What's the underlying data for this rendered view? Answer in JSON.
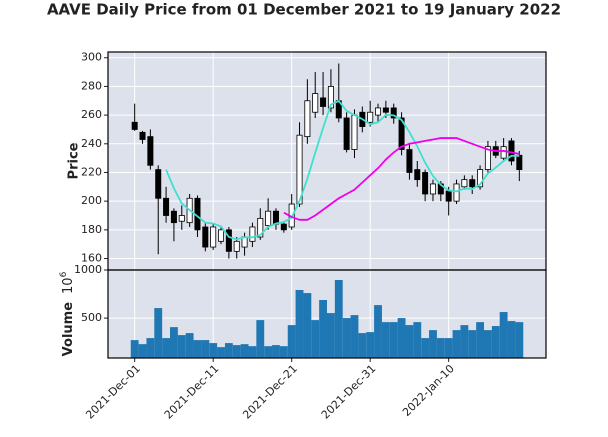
{
  "chart_data": {
    "type": "candlestick",
    "title": "AAVE Daily Price from 01 December 2021 to 19 January 2022",
    "ylabel": "Price",
    "x": [
      "2021-Dec-01",
      "2021-Dec-02",
      "2021-Dec-03",
      "2021-Dec-04",
      "2021-Dec-05",
      "2021-Dec-06",
      "2021-Dec-07",
      "2021-Dec-08",
      "2021-Dec-09",
      "2021-Dec-10",
      "2021-Dec-11",
      "2021-Dec-12",
      "2021-Dec-13",
      "2021-Dec-14",
      "2021-Dec-15",
      "2021-Dec-16",
      "2021-Dec-17",
      "2021-Dec-18",
      "2021-Dec-19",
      "2021-Dec-20",
      "2021-Dec-21",
      "2021-Dec-22",
      "2021-Dec-23",
      "2021-Dec-24",
      "2021-Dec-25",
      "2021-Dec-26",
      "2021-Dec-27",
      "2021-Dec-28",
      "2021-Dec-29",
      "2021-Dec-30",
      "2021-Dec-31",
      "2022-Jan-01",
      "2022-Jan-02",
      "2022-Jan-03",
      "2022-Jan-04",
      "2022-Jan-05",
      "2022-Jan-06",
      "2022-Jan-07",
      "2022-Jan-08",
      "2022-Jan-09",
      "2022-Jan-10",
      "2022-Jan-11",
      "2022-Jan-12",
      "2022-Jan-13",
      "2022-Jan-14",
      "2022-Jan-15",
      "2022-Jan-16",
      "2022-Jan-17",
      "2022-Jan-18",
      "2022-Jan-19"
    ],
    "open": [
      255,
      248,
      245,
      222,
      202,
      193,
      186,
      185,
      202,
      182,
      168,
      172,
      180,
      165,
      168,
      172,
      175,
      183,
      193,
      184,
      182,
      198,
      245,
      262,
      272,
      265,
      270,
      258,
      236,
      262,
      255,
      260,
      265,
      265,
      258,
      236,
      222,
      220,
      205,
      212,
      207,
      200,
      210,
      215,
      210,
      222,
      238,
      230,
      242,
      232
    ],
    "high": [
      268,
      249,
      250,
      225,
      210,
      195,
      197,
      205,
      204,
      185,
      184,
      182,
      182,
      175,
      178,
      185,
      195,
      202,
      195,
      186,
      205,
      255,
      285,
      290,
      290,
      292,
      296,
      262,
      264,
      266,
      270,
      268,
      270,
      268,
      262,
      240,
      228,
      222,
      215,
      214,
      210,
      215,
      218,
      218,
      225,
      242,
      242,
      244,
      244,
      235
    ],
    "low": [
      249,
      240,
      222,
      163,
      185,
      172,
      180,
      182,
      175,
      165,
      166,
      170,
      160,
      160,
      162,
      168,
      173,
      180,
      180,
      178,
      180,
      196,
      240,
      258,
      260,
      262,
      255,
      234,
      230,
      248,
      252,
      255,
      258,
      254,
      232,
      215,
      210,
      200,
      200,
      200,
      190,
      198,
      208,
      205,
      208,
      220,
      230,
      228,
      225,
      214
    ],
    "close": [
      250,
      243,
      225,
      202,
      190,
      185,
      190,
      202,
      180,
      168,
      182,
      180,
      165,
      172,
      175,
      182,
      188,
      193,
      184,
      180,
      198,
      246,
      270,
      275,
      266,
      280,
      258,
      236,
      260,
      252,
      262,
      265,
      262,
      258,
      236,
      220,
      215,
      205,
      212,
      205,
      200,
      212,
      215,
      210,
      222,
      238,
      232,
      238,
      228,
      222
    ],
    "up_color": "#ffffff",
    "down_color": "#000000",
    "edge_color": "#000000",
    "moving_averages": [
      {
        "color": "#40e0d0",
        "values": [
          null,
          null,
          null,
          null,
          222,
          209,
          198.4,
          193.8,
          189.4,
          185,
          184.4,
          182.4,
          175,
          173.4,
          174.8,
          174.8,
          176.4,
          182,
          184.4,
          185.4,
          188.6,
          200.2,
          215.6,
          233.8,
          251,
          267.4,
          269.8,
          263,
          260,
          257.2,
          253.6,
          255,
          260.2,
          259.8,
          256.6,
          248.2,
          238.2,
          226.8,
          217.6,
          211.4,
          207.4,
          206.8,
          208.8,
          208.4,
          211.8,
          219.4,
          223.4,
          228,
          231.6,
          231.6
        ]
      },
      {
        "color": "#ee00ee",
        "values": [
          null,
          null,
          null,
          null,
          null,
          null,
          null,
          null,
          null,
          null,
          null,
          null,
          null,
          null,
          null,
          null,
          null,
          null,
          null,
          192,
          189,
          187,
          187,
          190,
          194,
          198,
          202,
          205,
          208,
          213,
          218,
          223,
          229,
          234,
          238,
          240,
          241,
          242,
          243,
          244,
          244,
          244,
          242,
          240,
          238,
          236,
          235,
          235,
          234,
          233
        ]
      }
    ],
    "ylim": [
      152,
      304
    ],
    "yticks": [
      160,
      180,
      200,
      220,
      240,
      260,
      280,
      300
    ],
    "xticks": [
      "2021-Dec-01",
      "2021-Dec-11",
      "2021-Dec-21",
      "2021-Dec-31",
      "2022-Jan-10"
    ],
    "grid": true,
    "background": "#dde1ec",
    "volume": {
      "ylabel": "Volume",
      "scale": {
        "base": "10",
        "power": "6"
      },
      "color": "#1f77b4",
      "values": [
        271,
        229,
        292,
        604,
        292,
        406,
        323,
        344,
        271,
        271,
        240,
        198,
        240,
        219,
        229,
        208,
        479,
        208,
        219,
        208,
        427,
        792,
        760,
        479,
        688,
        552,
        896,
        500,
        531,
        344,
        354,
        635,
        458,
        458,
        500,
        427,
        458,
        292,
        375,
        292,
        292,
        375,
        427,
        375,
        458,
        375,
        417,
        563,
        469,
        458
      ],
      "ylim": [
        85,
        1000
      ],
      "yticks": [
        500,
        1000
      ]
    }
  }
}
